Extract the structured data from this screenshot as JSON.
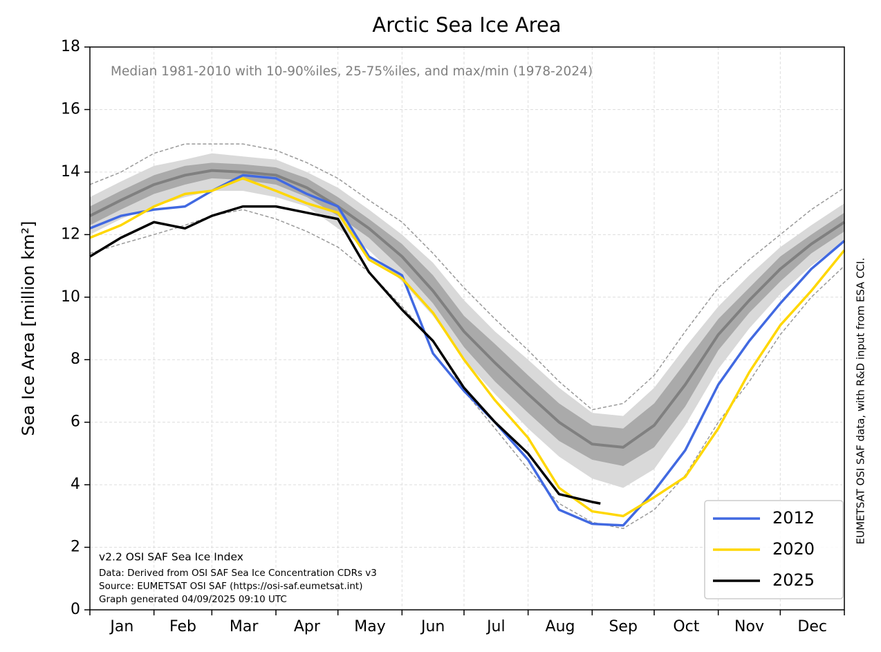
{
  "chart_data": {
    "type": "line",
    "title": "Arctic Sea Ice Area",
    "subtitle": "Median 1981-2010 with 10-90%iles, 25-75%iles, and max/min (1978-2024)",
    "ylabel": "Sea Ice Area [million km²]",
    "side_note": "EUMETSAT OSI SAF data, with R&D input from ESA CCI.",
    "notes": [
      "v2.2 OSI SAF Sea Ice Index",
      "Data: Derived from OSI SAF Sea Ice Concentration CDRs v3",
      "Source: EUMETSAT OSI SAF (https://osi-saf.eumetsat.int)",
      "Graph generated 04/09/2025 09:10 UTC"
    ],
    "categories": [
      "Jan",
      "Feb",
      "Mar",
      "Apr",
      "May",
      "Jun",
      "Jul",
      "Aug",
      "Sep",
      "Oct",
      "Nov",
      "Dec"
    ],
    "xlim": [
      0,
      365
    ],
    "xticks": [
      0,
      31,
      59,
      90,
      120,
      151,
      181,
      212,
      243,
      273,
      304,
      334,
      365
    ],
    "ylim": [
      0,
      18
    ],
    "yticks": [
      0,
      2,
      4,
      6,
      8,
      10,
      12,
      14,
      16,
      18
    ],
    "grid": true,
    "legend": "lower right",
    "x": [
      0,
      15,
      31,
      46,
      59,
      74,
      90,
      105,
      120,
      135,
      151,
      166,
      181,
      196,
      212,
      227,
      243,
      258,
      273,
      288,
      304,
      319,
      334,
      349,
      365
    ],
    "bands": [
      {
        "color": "#d9d9d9",
        "upper": [
          13.2,
          13.7,
          14.2,
          14.4,
          14.6,
          14.5,
          14.4,
          14.0,
          13.5,
          12.8,
          12.0,
          11.1,
          9.9,
          8.9,
          8.0,
          7.1,
          6.3,
          6.2,
          7.1,
          8.4,
          9.7,
          10.7,
          11.6,
          12.3,
          13.0
        ],
        "lower": [
          12.0,
          12.5,
          12.9,
          13.2,
          13.4,
          13.4,
          13.2,
          12.9,
          12.2,
          11.5,
          10.5,
          9.4,
          8.0,
          6.9,
          5.8,
          4.9,
          4.2,
          3.9,
          4.5,
          5.9,
          7.7,
          9.0,
          10.1,
          11.0,
          11.8
        ]
      },
      {
        "color": "#aaaaaa",
        "upper": [
          12.9,
          13.4,
          13.9,
          14.2,
          14.3,
          14.25,
          14.15,
          13.8,
          13.2,
          12.5,
          11.7,
          10.7,
          9.4,
          8.5,
          7.5,
          6.6,
          5.9,
          5.8,
          6.6,
          7.9,
          9.3,
          10.3,
          11.3,
          12.0,
          12.7
        ],
        "lower": [
          12.3,
          12.8,
          13.3,
          13.6,
          13.8,
          13.75,
          13.6,
          13.2,
          12.6,
          11.9,
          10.9,
          9.8,
          8.4,
          7.3,
          6.3,
          5.4,
          4.8,
          4.6,
          5.2,
          6.5,
          8.3,
          9.5,
          10.5,
          11.4,
          12.1
        ]
      }
    ],
    "extremes": {
      "color": "#999999",
      "max": [
        13.6,
        14.0,
        14.6,
        14.9,
        14.9,
        14.9,
        14.7,
        14.3,
        13.8,
        13.1,
        12.4,
        11.4,
        10.3,
        9.3,
        8.3,
        7.3,
        6.4,
        6.6,
        7.5,
        8.9,
        10.3,
        11.2,
        12.0,
        12.8,
        13.5
      ],
      "min": [
        11.4,
        11.7,
        12.0,
        12.3,
        12.6,
        12.8,
        12.5,
        12.1,
        11.6,
        10.8,
        9.7,
        8.6,
        7.0,
        5.8,
        4.5,
        3.4,
        2.8,
        2.6,
        3.2,
        4.3,
        6.0,
        7.3,
        8.8,
        10.0,
        11.0
      ]
    },
    "median": {
      "color": "#808080",
      "values": [
        12.6,
        13.1,
        13.6,
        13.9,
        14.05,
        14.0,
        13.9,
        13.5,
        12.9,
        12.2,
        11.3,
        10.2,
        8.9,
        7.9,
        6.9,
        6.0,
        5.3,
        5.2,
        5.9,
        7.2,
        8.8,
        9.9,
        10.9,
        11.7,
        12.4
      ]
    },
    "series": [
      {
        "name": "2012",
        "color": "#4169e1",
        "values": [
          12.2,
          12.6,
          12.8,
          12.9,
          13.4,
          13.9,
          13.8,
          13.3,
          12.9,
          11.3,
          10.7,
          8.2,
          7.0,
          6.0,
          4.8,
          3.2,
          2.75,
          2.7,
          3.8,
          5.1,
          7.2,
          8.6,
          9.8,
          10.9,
          11.8
        ]
      },
      {
        "name": "2020",
        "color": "#ffd700",
        "values": [
          11.9,
          12.3,
          12.9,
          13.3,
          13.4,
          13.8,
          13.4,
          13.0,
          12.7,
          11.2,
          10.6,
          9.5,
          8.0,
          6.7,
          5.5,
          3.9,
          3.15,
          3.0,
          3.6,
          4.25,
          5.8,
          7.6,
          9.1,
          10.2,
          11.5
        ]
      },
      {
        "name": "2025",
        "color": "#000000",
        "x": [
          0,
          15,
          31,
          46,
          59,
          74,
          90,
          105,
          120,
          135,
          151,
          166,
          181,
          196,
          212,
          227,
          243,
          247
        ],
        "values": [
          11.3,
          11.9,
          12.4,
          12.2,
          12.6,
          12.9,
          12.9,
          12.7,
          12.5,
          10.8,
          9.6,
          8.6,
          7.1,
          6.0,
          5.0,
          3.7,
          3.45,
          3.4
        ]
      }
    ]
  }
}
